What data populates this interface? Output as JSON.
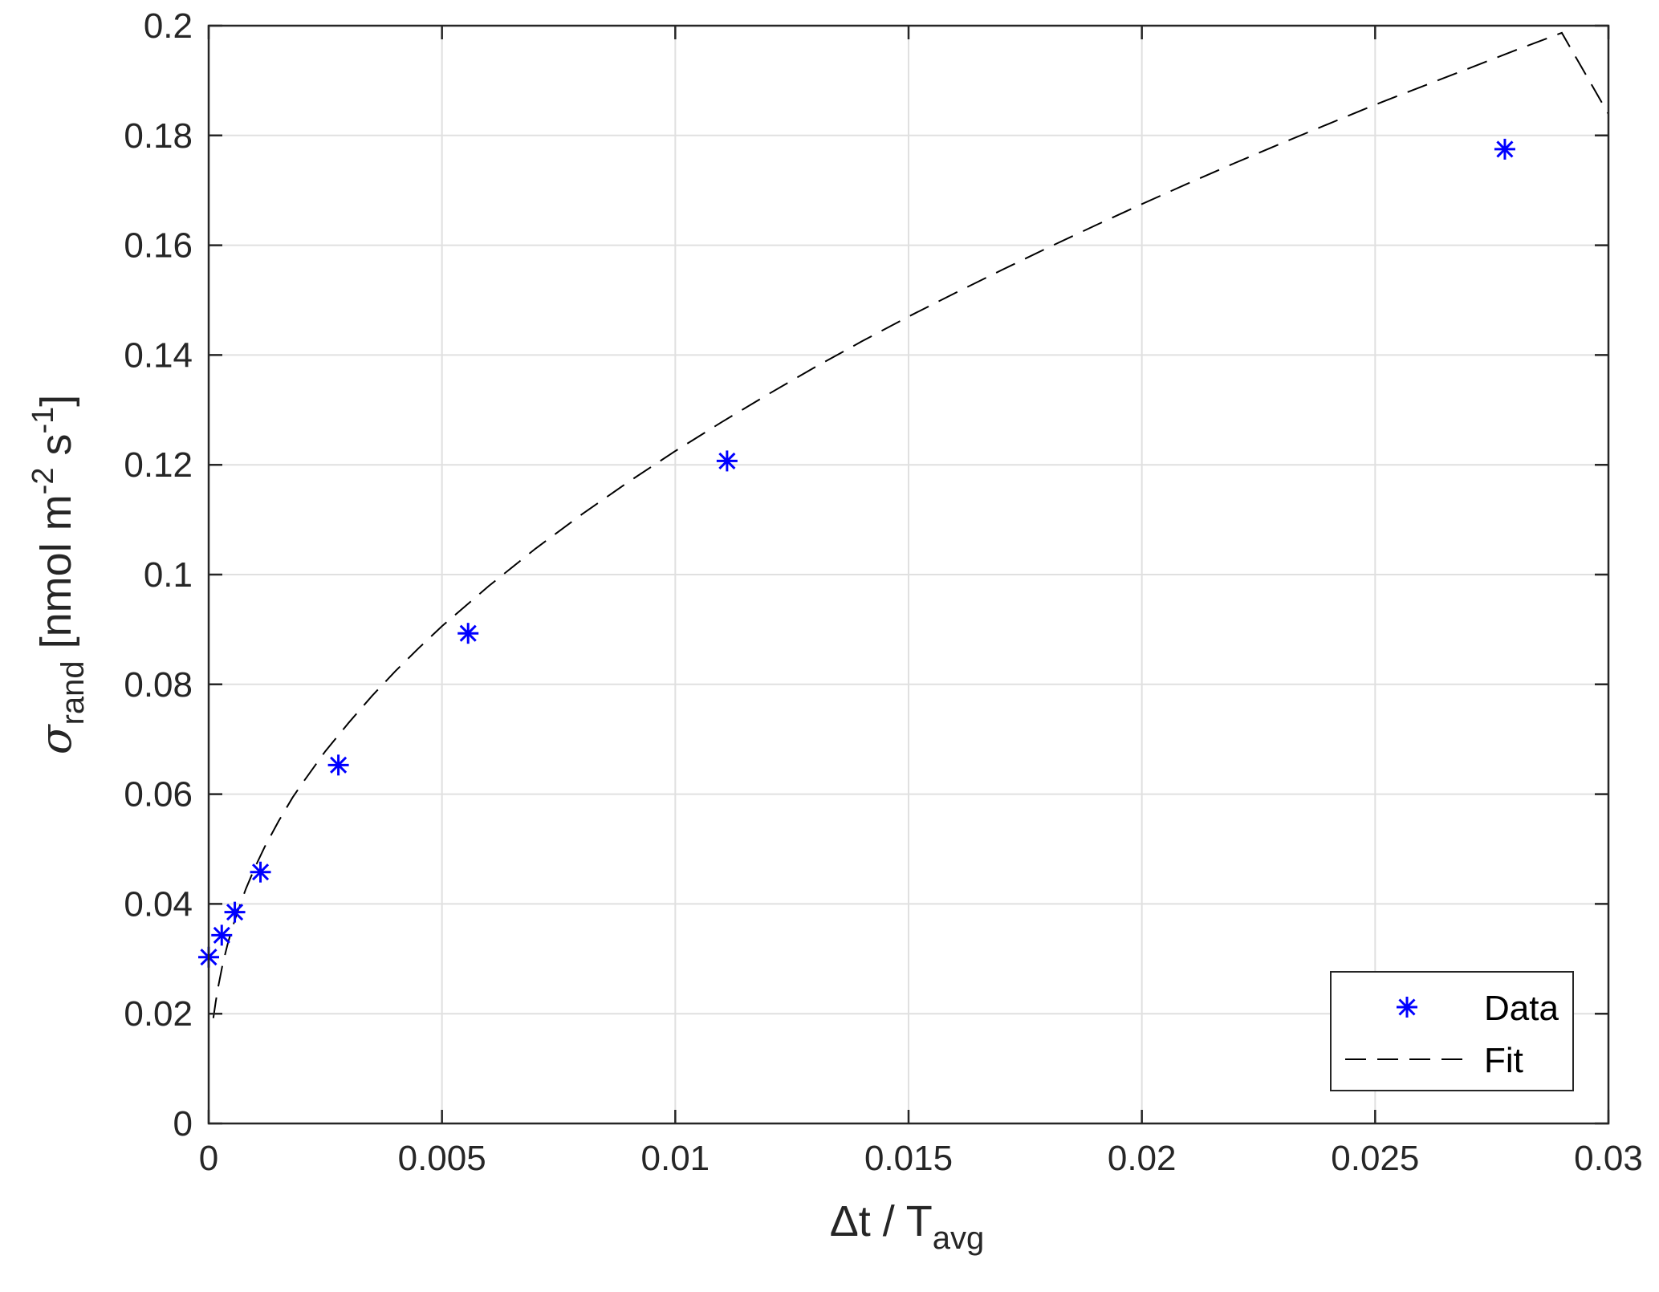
{
  "chart_data": {
    "type": "scatter",
    "xlabel": {
      "main": "Δt / T",
      "sub": "avg"
    },
    "ylabel": {
      "symbol": "σ",
      "sub": "rand",
      "unit_start": " [nmol m",
      "exp1": "-2",
      "unit_mid": " s",
      "exp2": "-1",
      "unit_end": "]"
    },
    "xlim": [
      0,
      0.03
    ],
    "ylim": [
      0,
      0.2
    ],
    "xticks": [
      0,
      0.005,
      0.01,
      0.015,
      0.02,
      0.025,
      0.03
    ],
    "xtick_labels": [
      "0",
      "0.005",
      "0.01",
      "0.015",
      "0.02",
      "0.025",
      "0.03"
    ],
    "yticks": [
      0,
      0.02,
      0.04,
      0.06,
      0.08,
      0.1,
      0.12,
      0.14,
      0.16,
      0.18,
      0.2
    ],
    "ytick_labels": [
      "0",
      "0.02",
      "0.04",
      "0.06",
      "0.08",
      "0.1",
      "0.12",
      "0.14",
      "0.16",
      "0.18",
      "0.2"
    ],
    "grid": true,
    "legend_position": "bottom-right",
    "series": [
      {
        "name": "Data",
        "style": "markers",
        "marker": "asterisk",
        "color": "#0000ff",
        "x": [
          0.0,
          0.00028,
          0.00056,
          0.00111,
          0.00278,
          0.00556,
          0.01111,
          0.02778
        ],
        "y": [
          0.0303,
          0.0343,
          0.0385,
          0.0458,
          0.0653,
          0.0893,
          0.1207,
          0.1775
        ]
      },
      {
        "name": "Fit",
        "style": "dashed-line",
        "color": "#000000",
        "x": [
          0.0001,
          0.00015,
          0.0002,
          0.0003,
          0.0004,
          0.0005,
          0.0006,
          0.0007,
          0.0008,
          0.001,
          0.0012,
          0.0015,
          0.0018,
          0.002,
          0.0025,
          0.003,
          0.0035,
          0.004,
          0.0045,
          0.005,
          0.006,
          0.007,
          0.008,
          0.009,
          0.01,
          0.011,
          0.012,
          0.013,
          0.014,
          0.015,
          0.016,
          0.017,
          0.018,
          0.019,
          0.02,
          0.021,
          0.022,
          0.023,
          0.024,
          0.025,
          0.026,
          0.027,
          0.028,
          0.029,
          0.03
        ],
        "y": [
          0.0192,
          0.0221,
          0.0247,
          0.029,
          0.0325,
          0.0355,
          0.0381,
          0.0405,
          0.0428,
          0.0468,
          0.0504,
          0.0551,
          0.0594,
          0.0619,
          0.0678,
          0.073,
          0.0779,
          0.0824,
          0.0866,
          0.0906,
          0.0979,
          0.1047,
          0.111,
          0.1169,
          0.1225,
          0.1278,
          0.1329,
          0.1378,
          0.1425,
          0.147,
          0.1513,
          0.1555,
          0.1596,
          0.1636,
          0.1675,
          0.1713,
          0.175,
          0.1786,
          0.1821,
          0.1856,
          0.1889,
          0.1922,
          0.1955,
          0.1987,
          0.1839
        ]
      }
    ]
  }
}
